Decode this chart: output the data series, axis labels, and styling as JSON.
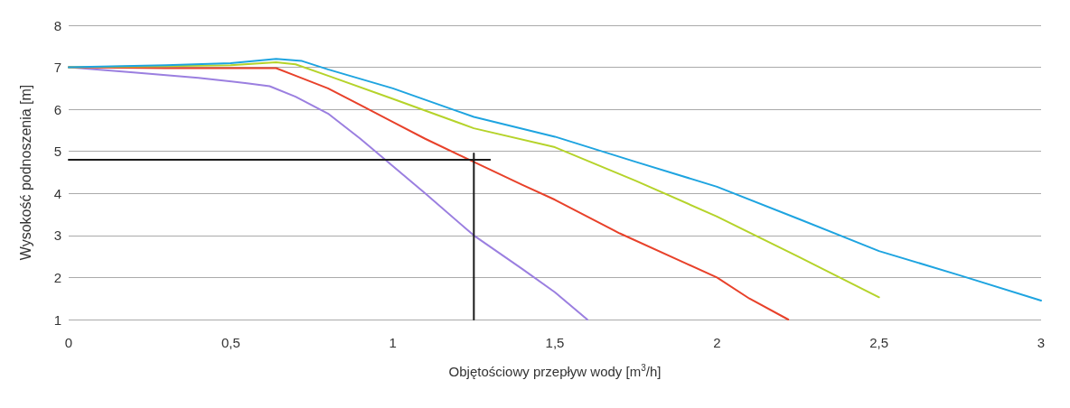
{
  "chart_data": {
    "type": "line",
    "xlabel": "Objętościowy przepływ wody [m$^{3}$/h]",
    "ylabel": "Wysokość podnoszenia [m]",
    "xlim": [
      0,
      3
    ],
    "ylim": [
      1,
      8
    ],
    "xticks": [
      0,
      {
        "value": 0.5,
        "label": "0,5"
      },
      1,
      {
        "value": 1.5,
        "label": "1,5"
      },
      2,
      {
        "value": 2.5,
        "label": "2,5"
      },
      3
    ],
    "yticks": [
      1,
      2,
      3,
      4,
      5,
      6,
      7,
      8
    ],
    "grid": "y",
    "marker": "none",
    "line_style": "solid",
    "series": [
      {
        "color": "#9b7fe0",
        "x": [
          0,
          0.2,
          0.4,
          0.55,
          0.62,
          0.7,
          0.8,
          0.9,
          1.0,
          1.1,
          1.25,
          1.4,
          1.5,
          1.6
        ],
        "values": [
          7,
          6.88,
          6.75,
          6.62,
          6.55,
          6.3,
          5.9,
          5.3,
          4.65,
          4.0,
          3.0,
          2.2,
          1.65,
          1.0
        ]
      },
      {
        "color": "#e8412a",
        "x": [
          0,
          0.3,
          0.64,
          0.7,
          0.8,
          0.9,
          1.0,
          1.1,
          1.25,
          1.4,
          1.5,
          1.7,
          1.9,
          2.0,
          2.1,
          2.22
        ],
        "values": [
          7,
          6.98,
          6.98,
          6.8,
          6.5,
          6.1,
          5.7,
          5.3,
          4.75,
          4.2,
          3.85,
          3.05,
          2.35,
          2.0,
          1.5,
          1.0
        ]
      },
      {
        "color": "#b5d32a",
        "x": [
          0,
          0.3,
          0.5,
          0.64,
          0.7,
          0.8,
          1.0,
          1.25,
          1.5,
          1.75,
          2.0,
          2.25,
          2.5
        ],
        "values": [
          7,
          7.03,
          7.05,
          7.12,
          7.07,
          6.8,
          6.25,
          5.55,
          5.1,
          4.3,
          3.45,
          2.5,
          1.53
        ]
      },
      {
        "color": "#1ea4e0",
        "x": [
          0,
          0.3,
          0.5,
          0.64,
          0.72,
          0.8,
          1.0,
          1.25,
          1.5,
          1.75,
          2.0,
          2.25,
          2.5,
          2.75,
          3.0
        ],
        "values": [
          7,
          7.05,
          7.1,
          7.2,
          7.15,
          6.95,
          6.5,
          5.82,
          5.35,
          4.75,
          4.16,
          3.4,
          2.63,
          2.05,
          1.45
        ]
      },
      {
        "color": "#1a1a1a",
        "x": [
          0,
          1.3
        ],
        "values": [
          4.8,
          4.8
        ]
      },
      {
        "color": "#1a1a1a",
        "x": [
          1.25,
          1.25
        ],
        "values": [
          1,
          4.95
        ]
      }
    ]
  }
}
